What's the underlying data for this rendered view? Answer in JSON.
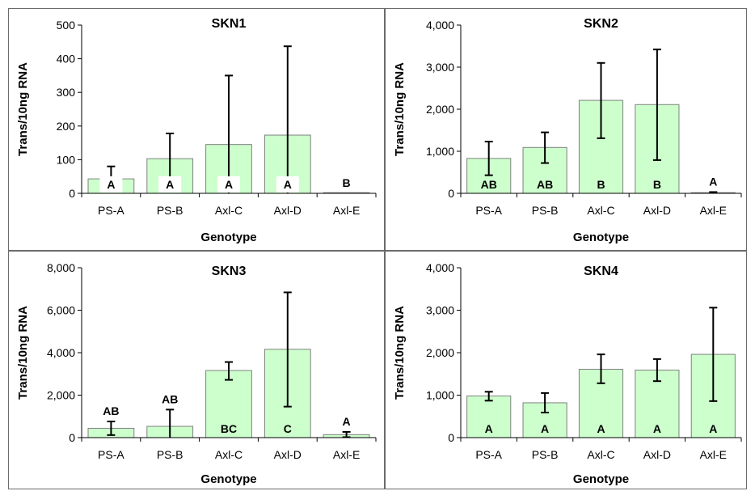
{
  "chart_data": [
    {
      "type": "bar",
      "title": "SKN1",
      "xlabel": "Genotype",
      "ylabel": "Trans/10ng RNA",
      "ylim": [
        0,
        500
      ],
      "yticks": [
        0,
        100,
        200,
        300,
        400,
        500
      ],
      "ytick_labels": [
        "0",
        "100",
        "200",
        "300",
        "400",
        "500"
      ],
      "categories": [
        "PS-A",
        "PS-B",
        "Axl-C",
        "Axl-D",
        "Axl-E"
      ],
      "values": [
        43,
        103,
        145,
        173,
        0
      ],
      "error": [
        [
          43,
          80
        ],
        [
          28,
          178
        ],
        [
          0,
          350
        ],
        [
          0,
          437
        ],
        [
          0,
          0
        ]
      ],
      "labels": [
        "A",
        "A",
        "A",
        "A",
        "B"
      ],
      "label_pos": [
        "inside",
        "inside",
        "inside",
        "inside",
        "above"
      ],
      "bar_color": "#ccffcc",
      "edge_color": "#808080",
      "grid": false
    },
    {
      "type": "bar",
      "title": "SKN2",
      "xlabel": "Genotype",
      "ylabel": "Trans/10ng RNA",
      "ylim": [
        0,
        4000
      ],
      "yticks": [
        0,
        1000,
        2000,
        3000,
        4000
      ],
      "ytick_labels": [
        "0",
        "1,000",
        "2,000",
        "3,000",
        "4,000"
      ],
      "categories": [
        "PS-A",
        "PS-B",
        "Axl-C",
        "Axl-D",
        "Axl-E"
      ],
      "values": [
        830,
        1090,
        2210,
        2110,
        15
      ],
      "error": [
        [
          430,
          1230
        ],
        [
          720,
          1450
        ],
        [
          1310,
          3100
        ],
        [
          790,
          3420
        ],
        [
          0,
          30
        ]
      ],
      "labels": [
        "AB",
        "AB",
        "B",
        "B",
        "A"
      ],
      "label_pos": [
        "inside",
        "inside",
        "inside",
        "inside",
        "above"
      ],
      "bar_color": "#ccffcc",
      "edge_color": "#808080",
      "grid": false
    },
    {
      "type": "bar",
      "title": "SKN3",
      "xlabel": "Genotype",
      "ylabel": "Trans/10ng RNA",
      "ylim": [
        0,
        8000
      ],
      "yticks": [
        0,
        2000,
        4000,
        6000,
        8000
      ],
      "ytick_labels": [
        "0",
        "2,000",
        "4,000",
        "6,000",
        "8,000"
      ],
      "categories": [
        "PS-A",
        "PS-B",
        "Axl-C",
        "Axl-D",
        "Axl-E"
      ],
      "values": [
        440,
        530,
        3160,
        4160,
        140
      ],
      "error": [
        [
          120,
          760
        ],
        [
          0,
          1320
        ],
        [
          2720,
          3560
        ],
        [
          1460,
          6840
        ],
        [
          20,
          270
        ]
      ],
      "labels": [
        "AB",
        "AB",
        "BC",
        "C",
        "A"
      ],
      "label_pos": [
        "above",
        "above",
        "inside",
        "inside",
        "above"
      ],
      "bar_color": "#ccffcc",
      "edge_color": "#808080",
      "grid": false
    },
    {
      "type": "bar",
      "title": "SKN4",
      "xlabel": "Genotype",
      "ylabel": "Trans/10ng RNA",
      "ylim": [
        0,
        4000
      ],
      "yticks": [
        0,
        1000,
        2000,
        3000,
        4000
      ],
      "ytick_labels": [
        "0",
        "1,000",
        "2,000",
        "3,000",
        "4,000"
      ],
      "categories": [
        "PS-A",
        "PS-B",
        "Axl-C",
        "Axl-D",
        "Axl-E"
      ],
      "values": [
        980,
        820,
        1610,
        1590,
        1960
      ],
      "error": [
        [
          870,
          1080
        ],
        [
          590,
          1050
        ],
        [
          1280,
          1960
        ],
        [
          1330,
          1850
        ],
        [
          860,
          3060
        ]
      ],
      "labels": [
        "A",
        "A",
        "A",
        "A",
        "A"
      ],
      "label_pos": [
        "inside",
        "inside",
        "inside",
        "inside",
        "inside"
      ],
      "bar_color": "#ccffcc",
      "edge_color": "#808080",
      "grid": false
    }
  ]
}
